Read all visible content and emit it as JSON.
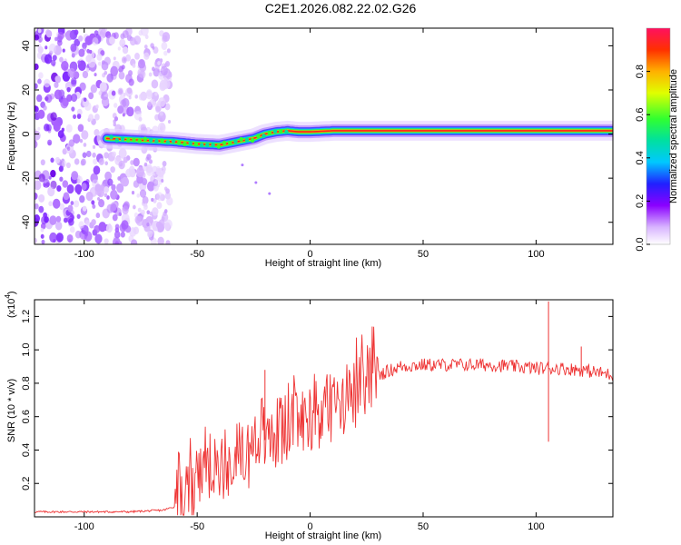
{
  "title": "C2E1.2026.082.22.02.G26",
  "chart_data": [
    {
      "type": "heatmap",
      "name": "spectrogram",
      "xlabel": "Height of straight line (km)",
      "ylabel": "Frequency (Hz)",
      "xlim": [
        -122,
        134
      ],
      "ylim": [
        -50,
        48
      ],
      "xticks": [
        -100,
        -50,
        0,
        50,
        100
      ],
      "yticks": [
        -40,
        -20,
        0,
        20,
        40
      ],
      "ridge_x": [
        -90,
        -80,
        -70,
        -60,
        -50,
        -40,
        -35,
        -30,
        -25,
        -20,
        -15,
        -10,
        -5,
        0,
        10,
        20,
        30,
        40,
        50,
        60,
        70,
        80,
        90,
        100,
        110,
        120,
        134
      ],
      "ridge_freq": [
        -2,
        -2.5,
        -3,
        -3.5,
        -4.5,
        -5,
        -4,
        -3,
        -2,
        0,
        1,
        1.5,
        1,
        1,
        1.5,
        1.5,
        1.5,
        1.5,
        1.5,
        1.5,
        1.5,
        1.5,
        1.5,
        1.5,
        1.5,
        1.5,
        1.5
      ],
      "noise_region_x": [
        -122,
        -62
      ],
      "colorbar": {
        "label": "Normalized spectral amplitude",
        "range": [
          0,
          1
        ],
        "ticks": [
          "0.0",
          "0.2",
          "0.4",
          "0.6",
          "0.8"
        ],
        "tick_values": [
          0.0,
          0.2,
          0.4,
          0.6,
          0.8
        ]
      }
    },
    {
      "type": "line",
      "name": "snr",
      "xlabel": "Height of straight line (km)",
      "ylabel": "SNR (10 * v/v)",
      "exponent_label": "(x10",
      "exponent_power": "4",
      "xlim": [
        -122,
        134
      ],
      "ylim": [
        0,
        1.3
      ],
      "xticks": [
        -100,
        -50,
        0,
        50,
        100
      ],
      "yticks": [
        0.2,
        0.4,
        0.6,
        0.8,
        1.0,
        1.2
      ],
      "ytick_labels": [
        "0.2",
        "0.4",
        "0.6",
        "0.8",
        "1.0",
        "1.2"
      ],
      "color": "#ee3333",
      "trend_x": [
        -122,
        -100,
        -80,
        -65,
        -58,
        -50,
        -40,
        -30,
        -20,
        -10,
        0,
        10,
        20,
        30,
        40,
        50,
        60,
        70,
        80,
        90,
        100,
        110,
        120,
        134
      ],
      "trend_y": [
        0.03,
        0.03,
        0.03,
        0.04,
        0.07,
        0.2,
        0.28,
        0.36,
        0.46,
        0.53,
        0.6,
        0.66,
        0.73,
        0.85,
        0.9,
        0.91,
        0.91,
        0.91,
        0.91,
        0.9,
        0.89,
        0.89,
        0.88,
        0.85
      ],
      "spikes": [
        {
          "x": 105.5,
          "y": 1.29
        },
        {
          "x": 105.5,
          "y": 0.45
        },
        {
          "x": -20,
          "y": 0.88
        },
        {
          "x": 120,
          "y": 1.02
        }
      ]
    }
  ]
}
